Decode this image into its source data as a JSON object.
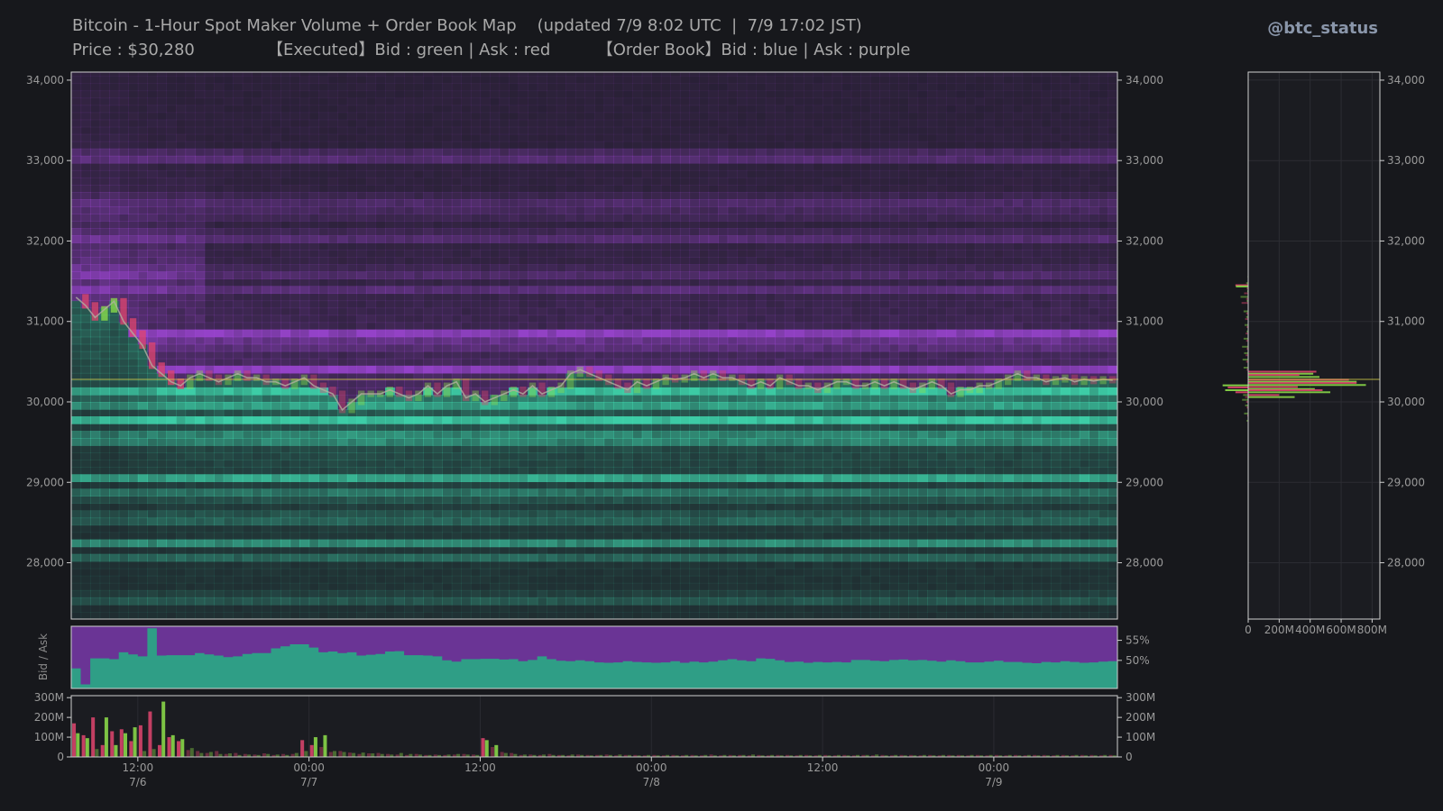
{
  "header": {
    "title": "Bitcoin - 1-Hour Spot Maker Volume + Order Book Map    (updated 7/9 8:02 UTC  |  7/9 17:02 JST)",
    "subtitle": "Price : $30,280              【Executed】Bid : green | Ask : red         【Order Book】Bid : blue | Ask : purple",
    "brand": "@btc_status"
  },
  "colors": {
    "background": "#17181c",
    "bid_book": "#3fd6ad",
    "ask_book": "#9b45d1",
    "executed_bid": "#8ee04a",
    "executed_ask": "#e0456e",
    "price_line": "#b0b0a0",
    "current_price_line": "#d8d04a"
  },
  "chart_data": [
    {
      "type": "heatmap",
      "name": "Order Book Map",
      "ylim": [
        27300,
        34100
      ],
      "y_ticks": [
        "34,000",
        "33,000",
        "32,000",
        "31,000",
        "30,000",
        "29,000",
        "28,000"
      ],
      "y_tick_values": [
        34000,
        33000,
        32000,
        31000,
        30000,
        29000,
        28000
      ],
      "current_price": 30280,
      "ask_walls": [
        {
          "price": 33050,
          "strength": 0.55
        },
        {
          "price": 32500,
          "strength": 0.35
        },
        {
          "price": 32350,
          "strength": 0.3
        },
        {
          "price": 32050,
          "strength": 0.4
        },
        {
          "price": 31600,
          "strength": 0.3
        },
        {
          "price": 31400,
          "strength": 0.3
        },
        {
          "price": 30850,
          "strength": 0.75
        },
        {
          "price": 30730,
          "strength": 0.55
        },
        {
          "price": 30400,
          "strength": 0.7
        }
      ],
      "bid_walls": [
        {
          "price": 30150,
          "strength": 0.7
        },
        {
          "price": 29980,
          "strength": 0.6
        },
        {
          "price": 29780,
          "strength": 0.75
        },
        {
          "price": 29550,
          "strength": 0.7
        },
        {
          "price": 29050,
          "strength": 0.65
        },
        {
          "price": 28850,
          "strength": 0.45
        },
        {
          "price": 28550,
          "strength": 0.4
        },
        {
          "price": 28250,
          "strength": 0.55
        },
        {
          "price": 28050,
          "strength": 0.35
        },
        {
          "price": 27550,
          "strength": 0.3
        }
      ],
      "price_series": [
        31300,
        31200,
        31050,
        31150,
        31250,
        31000,
        30850,
        30700,
        30450,
        30350,
        30250,
        30200,
        30300,
        30350,
        30300,
        30250,
        30300,
        30350,
        30300,
        30300,
        30250,
        30250,
        30200,
        30250,
        30300,
        30200,
        30150,
        30100,
        29900,
        30000,
        30100,
        30100,
        30100,
        30150,
        30100,
        30050,
        30100,
        30200,
        30100,
        30200,
        30250,
        30050,
        30100,
        30000,
        30050,
        30100,
        30150,
        30100,
        30200,
        30100,
        30150,
        30200,
        30350,
        30400,
        30350,
        30300,
        30250,
        30200,
        30150,
        30250,
        30200,
        30250,
        30300,
        30280,
        30300,
        30350,
        30300,
        30350,
        30300,
        30300,
        30250,
        30200,
        30250,
        30200,
        30300,
        30250,
        30200,
        30200,
        30150,
        30200,
        30250,
        30250,
        30200,
        30200,
        30250,
        30200,
        30250,
        30200,
        30150,
        30200,
        30250,
        30200,
        30100,
        30150,
        30150,
        30200,
        30200,
        30250,
        30300,
        30350,
        30300,
        30300,
        30250,
        30280,
        30300,
        30250,
        30280,
        30260,
        30280,
        30270
      ]
    },
    {
      "type": "area",
      "name": "Bid / Ask",
      "ylabel": "Bid / Ask",
      "ylim": [
        43,
        58.5
      ],
      "y_ticks": [
        "55%",
        "50%"
      ],
      "y_tick_values": [
        55,
        50
      ],
      "bid_share": [
        48,
        44,
        50.5,
        50.5,
        50.3,
        52,
        51.5,
        51,
        58,
        51.2,
        51.3,
        51.3,
        51.3,
        51.8,
        51.5,
        51.2,
        50.8,
        51,
        51.6,
        51.8,
        51.8,
        53,
        53.5,
        54,
        54,
        53.2,
        52,
        52.2,
        51.8,
        52,
        51.2,
        51.4,
        51.6,
        52.2,
        52.3,
        51.3,
        51.3,
        51.2,
        51,
        50,
        49.7,
        50.3,
        50.3,
        50.4,
        50.4,
        50.2,
        50.3,
        49.8,
        50.1,
        51,
        50.3,
        49.9,
        49.8,
        50,
        49.8,
        49.5,
        49.4,
        49.5,
        49.8,
        49.6,
        49.5,
        49.4,
        49.5,
        49.8,
        49.4,
        49.7,
        49.5,
        49.7,
        50,
        50.3,
        50,
        49.8,
        50.5,
        50.4,
        50,
        49.6,
        49.7,
        49.4,
        49.6,
        49.5,
        49.6,
        49.5,
        50.1,
        50.1,
        49.9,
        49.8,
        50.1,
        50.2,
        50,
        50.1,
        49.9,
        49.7,
        50,
        49.8,
        49.5,
        49.5,
        49.7,
        49.9,
        49.6,
        49.6,
        49.4,
        49.3,
        49.6,
        49.5,
        49.8,
        49.6,
        49.4,
        49.5,
        49.7,
        49.8
      ]
    },
    {
      "type": "bar",
      "name": "Executed Volume",
      "ylim": [
        0,
        310
      ],
      "y_ticks": [
        "300M",
        "200M",
        "100M",
        "0"
      ],
      "y_tick_values": [
        300,
        200,
        100,
        0
      ],
      "x_ticks": [
        {
          "top": "12:00",
          "bottom": "7/6",
          "index": 7
        },
        {
          "top": "00:00",
          "bottom": "7/7",
          "index": 25
        },
        {
          "top": "12:00",
          "bottom": "",
          "index": 43
        },
        {
          "top": "00:00",
          "bottom": "7/8",
          "index": 61
        },
        {
          "top": "12:00",
          "bottom": "",
          "index": 79
        },
        {
          "top": "00:00",
          "bottom": "7/9",
          "index": 97
        }
      ],
      "bid_volume_M": [
        120,
        95,
        40,
        200,
        60,
        120,
        150,
        30,
        40,
        280,
        110,
        90,
        45,
        20,
        25,
        15,
        18,
        10,
        12,
        10,
        15,
        12,
        10,
        20,
        30,
        100,
        110,
        30,
        25,
        20,
        22,
        18,
        15,
        12,
        20,
        15,
        12,
        10,
        10,
        12,
        15,
        12,
        10,
        85,
        60,
        20,
        15,
        12,
        10,
        12,
        10,
        10,
        12,
        10,
        8,
        10,
        10,
        12,
        10,
        8,
        10,
        8,
        10,
        8,
        10,
        8,
        10,
        8,
        10,
        8,
        10,
        12,
        8,
        10,
        8,
        8,
        10,
        8,
        10,
        8,
        10,
        8,
        10,
        10,
        12,
        8,
        10,
        8,
        8,
        10,
        8,
        10,
        8,
        8,
        10,
        8,
        10,
        8,
        10,
        8,
        10,
        8,
        8,
        10,
        8,
        10,
        8,
        8,
        10,
        8
      ],
      "ask_volume_M": [
        170,
        110,
        200,
        60,
        130,
        140,
        80,
        160,
        230,
        60,
        100,
        80,
        35,
        30,
        20,
        30,
        15,
        20,
        15,
        12,
        18,
        10,
        15,
        15,
        85,
        60,
        50,
        25,
        30,
        22,
        15,
        18,
        20,
        15,
        12,
        10,
        15,
        10,
        12,
        10,
        12,
        15,
        12,
        95,
        50,
        25,
        20,
        10,
        12,
        10,
        15,
        10,
        8,
        12,
        10,
        10,
        12,
        8,
        10,
        10,
        8,
        10,
        8,
        10,
        8,
        10,
        8,
        12,
        8,
        10,
        10,
        8,
        10,
        8,
        10,
        10,
        8,
        10,
        8,
        10,
        8,
        10,
        8,
        10,
        8,
        10,
        8,
        10,
        10,
        8,
        10,
        8,
        10,
        10,
        8,
        10,
        8,
        10,
        8,
        10,
        8,
        10,
        10,
        8,
        10,
        8,
        10,
        10,
        8,
        10
      ]
    },
    {
      "type": "bar",
      "name": "Volume Profile",
      "orientation": "horizontal",
      "xlim": [
        0,
        850
      ],
      "x_ticks": [
        "0",
        "200M",
        "400M",
        "600M",
        "800M"
      ],
      "x_tick_values": [
        0,
        200,
        400,
        600,
        800
      ],
      "executed_levels": [
        {
          "price": 31550,
          "bid": 12,
          "ask": 8
        },
        {
          "price": 31470,
          "bid": 40,
          "ask": 250
        },
        {
          "price": 31430,
          "bid": 240,
          "ask": 30
        },
        {
          "price": 31370,
          "bid": 20,
          "ask": 80
        },
        {
          "price": 31300,
          "bid": 150,
          "ask": 40
        },
        {
          "price": 31250,
          "bid": 30,
          "ask": 130
        },
        {
          "price": 31120,
          "bid": 90,
          "ask": 40
        },
        {
          "price": 31050,
          "bid": 40,
          "ask": 60
        },
        {
          "price": 30950,
          "bid": 70,
          "ask": 30
        },
        {
          "price": 30870,
          "bid": 30,
          "ask": 50
        },
        {
          "price": 30780,
          "bid": 90,
          "ask": 40
        },
        {
          "price": 30680,
          "bid": 120,
          "ask": 30
        },
        {
          "price": 30600,
          "bid": 80,
          "ask": 50
        },
        {
          "price": 30520,
          "bid": 110,
          "ask": 40
        },
        {
          "price": 30420,
          "bid": 90,
          "ask": 30
        },
        {
          "price": 30200,
          "bid": 500,
          "ask": 400
        },
        {
          "price": 30140,
          "bid": 450,
          "ask": 250
        },
        {
          "price": 30080,
          "bid": 100,
          "ask": 60
        },
        {
          "price": 30020,
          "bid": 120,
          "ask": 40
        },
        {
          "price": 29950,
          "bid": 60,
          "ask": 30
        },
        {
          "price": 29850,
          "bid": 80,
          "ask": 20
        },
        {
          "price": 29760,
          "bid": 30,
          "ask": 10
        }
      ],
      "executed_levels_right": [
        {
          "price": 30370,
          "ask": 440,
          "bid": 420
        },
        {
          "price": 30330,
          "ask": 330,
          "bid": 460
        },
        {
          "price": 30270,
          "ask": 650,
          "bid": 700
        },
        {
          "price": 30230,
          "ask": 700,
          "bid": 760
        },
        {
          "price": 30180,
          "ask": 320,
          "bid": 430
        },
        {
          "price": 30140,
          "ask": 480,
          "bid": 530
        },
        {
          "price": 30080,
          "ask": 200,
          "bid": 300
        }
      ]
    }
  ]
}
